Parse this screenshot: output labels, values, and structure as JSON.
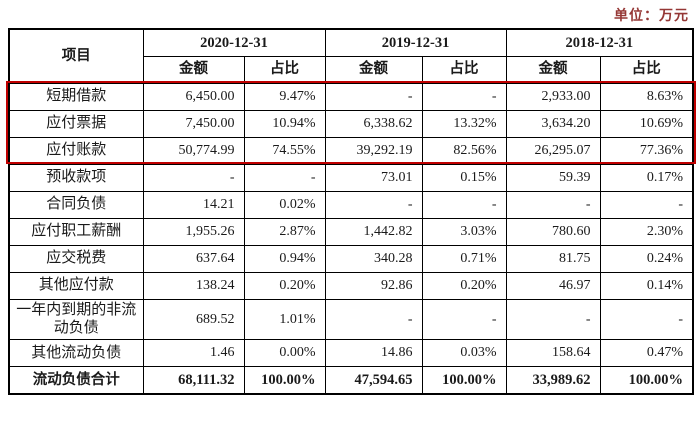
{
  "unit_label": "单位：万元",
  "colors": {
    "unit_text": "#953735",
    "highlight_box": "#c00000",
    "table_border": "#000000",
    "background": "#ffffff"
  },
  "table": {
    "item_header": "项目",
    "period_headers": [
      "2020-12-31",
      "2019-12-31",
      "2018-12-31"
    ],
    "sub_headers": {
      "amount": "金额",
      "ratio": "占比"
    },
    "rows": [
      {
        "item": "短期借款",
        "values": [
          "6,450.00",
          "9.47%",
          "-",
          "-",
          "2,933.00",
          "8.63%"
        ],
        "highlight": true,
        "total": false
      },
      {
        "item": "应付票据",
        "values": [
          "7,450.00",
          "10.94%",
          "6,338.62",
          "13.32%",
          "3,634.20",
          "10.69%"
        ],
        "highlight": true,
        "total": false
      },
      {
        "item": "应付账款",
        "values": [
          "50,774.99",
          "74.55%",
          "39,292.19",
          "82.56%",
          "26,295.07",
          "77.36%"
        ],
        "highlight": true,
        "total": false
      },
      {
        "item": "预收款项",
        "values": [
          "-",
          "-",
          "73.01",
          "0.15%",
          "59.39",
          "0.17%"
        ],
        "highlight": false,
        "total": false
      },
      {
        "item": "合同负债",
        "values": [
          "14.21",
          "0.02%",
          "-",
          "-",
          "-",
          "-"
        ],
        "highlight": false,
        "total": false
      },
      {
        "item": "应付职工薪酬",
        "values": [
          "1,955.26",
          "2.87%",
          "1,442.82",
          "3.03%",
          "780.60",
          "2.30%"
        ],
        "highlight": false,
        "total": false
      },
      {
        "item": "应交税费",
        "values": [
          "637.64",
          "0.94%",
          "340.28",
          "0.71%",
          "81.75",
          "0.24%"
        ],
        "highlight": false,
        "total": false
      },
      {
        "item": "其他应付款",
        "values": [
          "138.24",
          "0.20%",
          "92.86",
          "0.20%",
          "46.97",
          "0.14%"
        ],
        "highlight": false,
        "total": false
      },
      {
        "item": "一年内到期的非流动负债",
        "values": [
          "689.52",
          "1.01%",
          "-",
          "-",
          "-",
          "-"
        ],
        "highlight": false,
        "total": false
      },
      {
        "item": "其他流动负债",
        "values": [
          "1.46",
          "0.00%",
          "14.86",
          "0.03%",
          "158.64",
          "0.47%"
        ],
        "highlight": false,
        "total": false
      },
      {
        "item": "流动负债合计",
        "values": [
          "68,111.32",
          "100.00%",
          "47,594.65",
          "100.00%",
          "33,989.62",
          "100.00%"
        ],
        "highlight": false,
        "total": true
      }
    ]
  }
}
